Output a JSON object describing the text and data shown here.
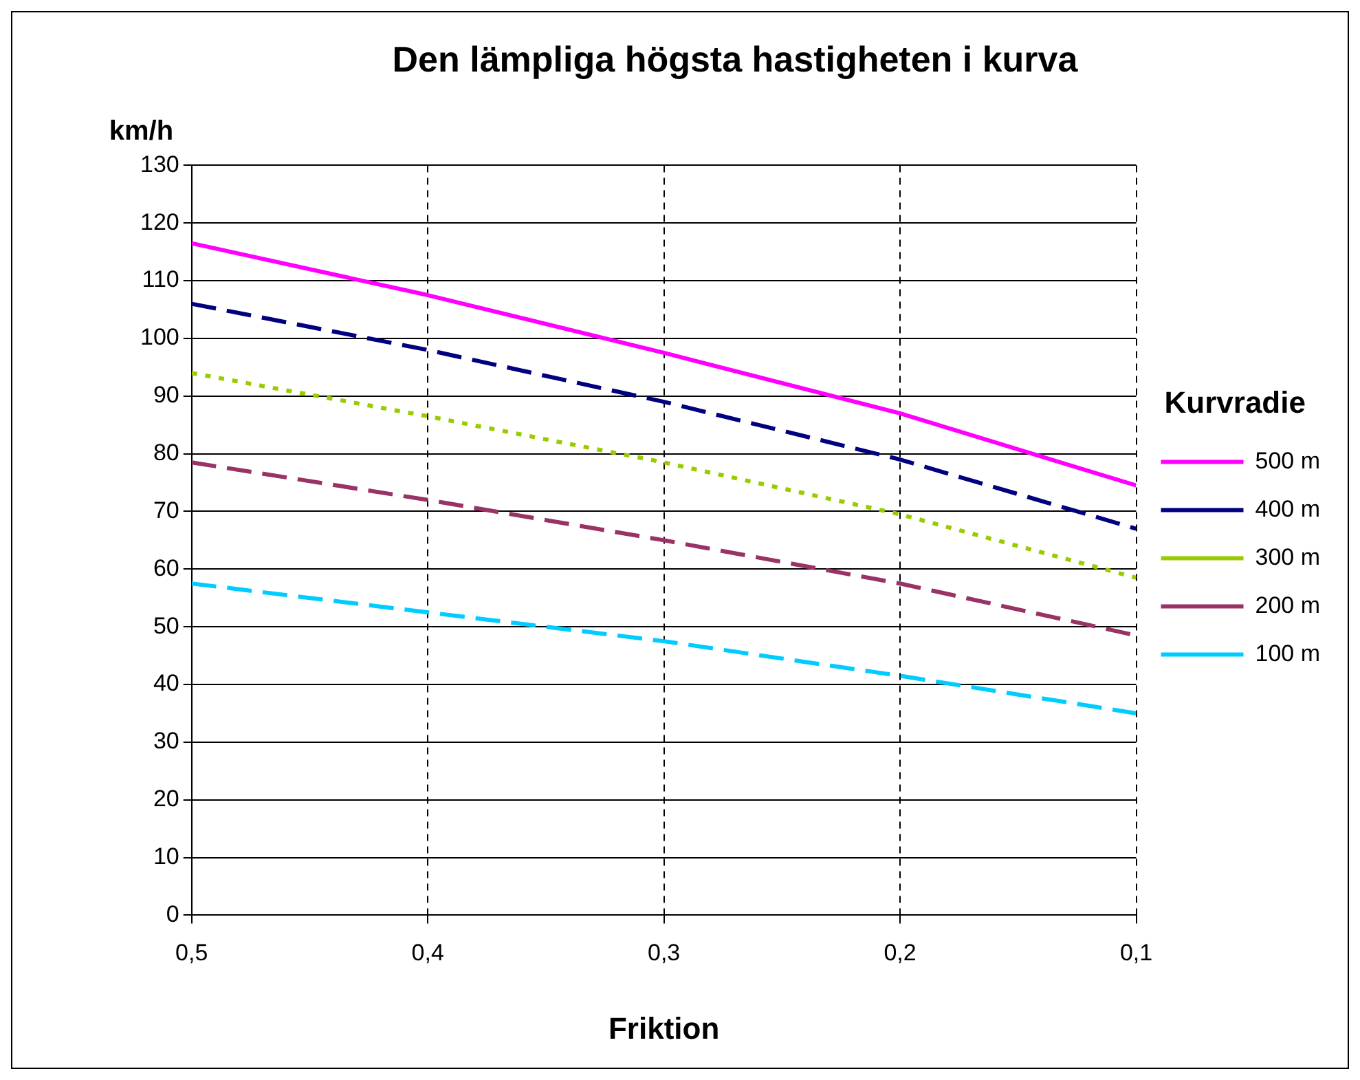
{
  "chart_data": {
    "type": "line",
    "title": "Den lämpliga högsta hastigheten i kurva",
    "xlabel": "Friktion",
    "ylabel": "km/h",
    "legend_title": "Kurvradie",
    "x": [
      0.5,
      0.4,
      0.3,
      0.2,
      0.1
    ],
    "series": [
      {
        "name": "500 m",
        "color": "#ff00ff",
        "line_style": "solid",
        "values": [
          116.5,
          107.5,
          97.5,
          87,
          74.5
        ]
      },
      {
        "name": "400 m",
        "color": "#000080",
        "line_style": "dashed",
        "values": [
          106,
          98,
          89,
          79,
          67
        ]
      },
      {
        "name": "300 m",
        "color": "#99cc00",
        "line_style": "dotted",
        "values": [
          94,
          86.5,
          78.5,
          69.5,
          58.5
        ]
      },
      {
        "name": "200 m",
        "color": "#993366",
        "line_style": "dashed",
        "values": [
          78.5,
          72,
          65,
          57.5,
          48.5
        ]
      },
      {
        "name": "100 m",
        "color": "#00ccff",
        "line_style": "dashed",
        "values": [
          57.5,
          52.5,
          47.5,
          41.5,
          35
        ]
      }
    ],
    "xlim": [
      0.5,
      0.1
    ],
    "xticks": [
      {
        "value": 0.5,
        "label": "0,5"
      },
      {
        "value": 0.4,
        "label": "0,4"
      },
      {
        "value": 0.3,
        "label": "0,3"
      },
      {
        "value": 0.2,
        "label": "0,2"
      },
      {
        "value": 0.1,
        "label": "0,1"
      }
    ],
    "ylim": [
      0,
      130
    ],
    "yticks": [
      0,
      10,
      20,
      30,
      40,
      50,
      60,
      70,
      80,
      90,
      100,
      110,
      120,
      130
    ],
    "grid": true,
    "legend": "right",
    "marker": "none"
  }
}
